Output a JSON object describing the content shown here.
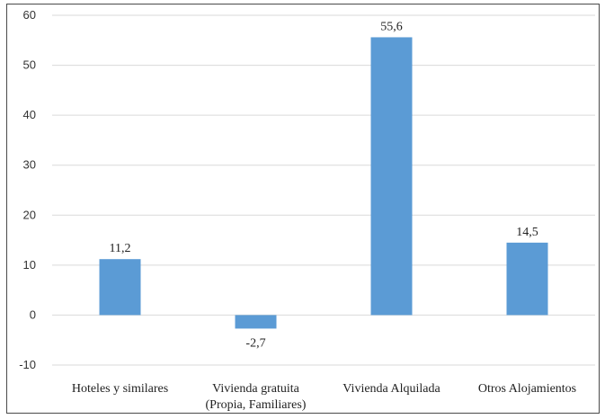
{
  "chart_data": {
    "type": "bar",
    "title": "",
    "xlabel": "",
    "ylabel": "",
    "categories": [
      [
        "Hoteles y similares"
      ],
      [
        "Vivienda gratuita",
        "(Propia, Familiares)"
      ],
      [
        "Vivienda Alquilada"
      ],
      [
        "Otros Alojamientos"
      ]
    ],
    "values": [
      11.2,
      -2.7,
      55.6,
      14.5
    ],
    "data_labels": [
      "11,2",
      "-2,7",
      "55,6",
      "14,5"
    ],
    "ylim": [
      -10,
      60
    ],
    "yticks": [
      -10,
      0,
      10,
      20,
      30,
      40,
      50,
      60
    ],
    "grid": true,
    "legend": "none",
    "bar_color": "#5b9bd5"
  }
}
